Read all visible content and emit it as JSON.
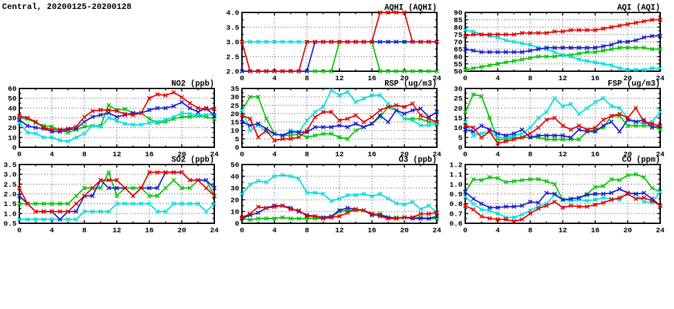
{
  "page_title": "Central, 20200125-20200128",
  "palette": {
    "red": "#e10000",
    "blue": "#1a1acd",
    "green": "#00c400",
    "cyan": "#00dcdc"
  },
  "chart_data": [
    {
      "id": "aqhi",
      "type": "line",
      "title": "AQHI (AQHI)",
      "xlim": [
        0,
        24
      ],
      "xticks": [
        0,
        4,
        8,
        12,
        16,
        20,
        24
      ],
      "x_minor_step": 2,
      "ylim": [
        2.0,
        4.0
      ],
      "ytick_step": 0.5,
      "ydecimals": 1,
      "grid": true,
      "legend": "none",
      "series": [
        {
          "name": "green",
          "color": "green",
          "values": [
            2,
            2,
            2,
            2,
            2,
            2,
            2,
            2,
            2,
            2,
            2,
            2,
            3,
            3,
            3,
            3,
            3,
            2,
            2,
            2,
            2,
            2,
            2,
            2,
            2
          ]
        },
        {
          "name": "cyan",
          "color": "cyan",
          "values": [
            3,
            3,
            3,
            3,
            3,
            3,
            3,
            3,
            3,
            3,
            3,
            3,
            3,
            3,
            3,
            3,
            3,
            3,
            3,
            3,
            3,
            3,
            3,
            3,
            3
          ]
        },
        {
          "name": "blue",
          "color": "blue",
          "values": [
            2,
            2,
            2,
            2,
            2,
            2,
            2,
            2,
            2,
            3,
            3,
            3,
            3,
            3,
            3,
            3,
            3,
            3,
            3,
            3,
            3,
            3,
            3,
            3,
            3
          ]
        },
        {
          "name": "red",
          "color": "red",
          "values": [
            3,
            2,
            2,
            2,
            2,
            2,
            2,
            2,
            3,
            3,
            3,
            3,
            3,
            3,
            3,
            3,
            3,
            4,
            4,
            4,
            4,
            3,
            3,
            3,
            3
          ]
        }
      ]
    },
    {
      "id": "aqi",
      "type": "line",
      "title": "AQI (AQI)",
      "xlim": [
        0,
        24
      ],
      "xticks": [
        0,
        4,
        8,
        12,
        16,
        20,
        24
      ],
      "x_minor_step": 2,
      "ylim": [
        50,
        90
      ],
      "ytick_step": 5,
      "ydecimals": 0,
      "grid": true,
      "legend": "none",
      "series": [
        {
          "name": "green",
          "color": "green",
          "values": [
            51,
            52,
            53,
            54,
            55,
            56,
            57,
            58,
            59,
            60,
            60,
            60,
            61,
            61,
            62,
            63,
            63,
            64,
            65,
            66,
            66,
            66,
            66,
            65,
            65
          ]
        },
        {
          "name": "cyan",
          "color": "cyan",
          "values": [
            78,
            77,
            75,
            74,
            73,
            71,
            70,
            69,
            68,
            66,
            65,
            63,
            61,
            60,
            58,
            57,
            56,
            55,
            54,
            52,
            51,
            51,
            51,
            52,
            52
          ]
        },
        {
          "name": "blue",
          "color": "blue",
          "values": [
            65,
            64,
            63,
            63,
            63,
            63,
            63,
            63,
            64,
            65,
            66,
            66,
            66,
            66,
            66,
            66,
            66,
            67,
            68,
            70,
            70,
            71,
            73,
            74,
            74
          ]
        },
        {
          "name": "red",
          "color": "red",
          "values": [
            74,
            75,
            75,
            75,
            75,
            75,
            75,
            76,
            76,
            76,
            76,
            77,
            77,
            78,
            78,
            78,
            78,
            79,
            80,
            81,
            82,
            83,
            84,
            85,
            85
          ]
        }
      ]
    },
    {
      "id": "no2",
      "type": "line",
      "title": "NO2 (ppb)",
      "xlim": [
        0,
        24
      ],
      "xticks": [
        0,
        4,
        8,
        12,
        16,
        20,
        24
      ],
      "x_minor_step": 2,
      "ylim": [
        0,
        60
      ],
      "ytick_step": 10,
      "ydecimals": 0,
      "grid": true,
      "legend": "none",
      "series": [
        {
          "name": "green",
          "color": "green",
          "values": [
            30,
            29,
            25,
            22,
            21,
            17,
            15,
            18,
            21,
            22,
            22,
            43,
            38,
            39,
            35,
            35,
            29,
            25,
            26,
            29,
            31,
            31,
            32,
            31,
            29
          ]
        },
        {
          "name": "cyan",
          "color": "cyan",
          "values": [
            25,
            15,
            14,
            10,
            10,
            7,
            6,
            10,
            14,
            22,
            21,
            30,
            27,
            24,
            23,
            23,
            25,
            26,
            28,
            31,
            35,
            34,
            33,
            33,
            33
          ]
        },
        {
          "name": "blue",
          "color": "blue",
          "values": [
            28,
            22,
            20,
            19,
            16,
            16,
            18,
            19,
            26,
            31,
            33,
            35,
            31,
            33,
            35,
            35,
            38,
            40,
            40,
            42,
            46,
            40,
            36,
            40,
            32
          ]
        },
        {
          "name": "red",
          "color": "red",
          "values": [
            32,
            30,
            26,
            20,
            18,
            18,
            19,
            21,
            31,
            37,
            38,
            38,
            37,
            34,
            33,
            35,
            50,
            54,
            53,
            56,
            51,
            45,
            40,
            39,
            39
          ]
        }
      ]
    },
    {
      "id": "rsp",
      "type": "line",
      "title": "RSP (ug/m3)",
      "xlim": [
        0,
        24
      ],
      "xticks": [
        0,
        4,
        8,
        12,
        16,
        20,
        24
      ],
      "x_minor_step": 2,
      "ylim": [
        0,
        35
      ],
      "ytick_step": 5,
      "ydecimals": 0,
      "grid": true,
      "legend": "none",
      "series": [
        {
          "name": "green",
          "color": "green",
          "values": [
            22,
            30,
            30,
            17,
            8,
            7,
            7,
            8,
            6,
            7,
            8,
            8,
            6,
            5,
            10,
            12,
            14,
            18,
            24,
            22,
            17,
            17,
            17,
            15,
            15
          ]
        },
        {
          "name": "cyan",
          "color": "cyan",
          "values": [
            22,
            10,
            13,
            9,
            8,
            7,
            10,
            9,
            16,
            21,
            24,
            34,
            31,
            33,
            27,
            29,
            31,
            31,
            26,
            22,
            17,
            16,
            13,
            13,
            14
          ]
        },
        {
          "name": "blue",
          "color": "blue",
          "values": [
            15,
            13,
            14,
            11,
            8,
            7,
            9,
            9,
            9,
            12,
            12,
            12,
            13,
            12,
            14,
            12,
            14,
            19,
            15,
            22,
            20,
            22,
            23,
            18,
            21
          ]
        },
        {
          "name": "red",
          "color": "red",
          "values": [
            19,
            17,
            6,
            10,
            4,
            5,
            5,
            6,
            10,
            18,
            21,
            21,
            16,
            17,
            19,
            15,
            18,
            22,
            24,
            25,
            24,
            26,
            19,
            17,
            15
          ]
        }
      ]
    },
    {
      "id": "fsp",
      "type": "line",
      "title": "FSP (ug/m3)",
      "xlim": [
        0,
        24
      ],
      "xticks": [
        0,
        4,
        8,
        12,
        16,
        20,
        24
      ],
      "x_minor_step": 2,
      "ylim": [
        0,
        30
      ],
      "ytick_step": 5,
      "ydecimals": 0,
      "grid": true,
      "legend": "none",
      "series": [
        {
          "name": "green",
          "color": "green",
          "values": [
            18,
            27,
            26,
            15,
            4,
            4,
            5,
            5,
            5,
            5,
            4,
            4,
            4,
            4,
            4,
            8,
            9,
            10,
            16,
            16,
            11,
            11,
            11,
            11,
            9
          ]
        },
        {
          "name": "cyan",
          "color": "cyan",
          "values": [
            13,
            6,
            7,
            8,
            5,
            5,
            6,
            7,
            10,
            15,
            18,
            25,
            21,
            22,
            17,
            20,
            23,
            25,
            21,
            20,
            15,
            13,
            12,
            13,
            18
          ]
        },
        {
          "name": "blue",
          "color": "blue",
          "values": [
            9,
            8,
            11,
            9,
            7,
            6,
            7,
            9,
            5,
            6,
            6,
            6,
            6,
            5,
            9,
            8,
            8,
            11,
            13,
            8,
            14,
            13,
            14,
            10,
            11
          ]
        },
        {
          "name": "red",
          "color": "red",
          "values": [
            11,
            10,
            5,
            8,
            2,
            3,
            4,
            5,
            7,
            10,
            14,
            15,
            11,
            9,
            11,
            9,
            10,
            14,
            16,
            17,
            15,
            20,
            13,
            12,
            11
          ]
        }
      ]
    },
    {
      "id": "so2",
      "type": "line",
      "title": "SO2 (ppb)",
      "xlim": [
        0,
        24
      ],
      "xticks": [
        0,
        4,
        8,
        12,
        16,
        20,
        24
      ],
      "x_minor_step": 2,
      "ylim": [
        0.5,
        3.5
      ],
      "ytick_step": 0.5,
      "ydecimals": 1,
      "grid": true,
      "legend": "none",
      "series": [
        {
          "name": "green",
          "color": "green",
          "values": [
            1.5,
            1.5,
            1.5,
            1.5,
            1.5,
            1.5,
            1.5,
            1.9,
            2.3,
            2.3,
            2.3,
            3.1,
            1.9,
            2.3,
            2.3,
            2.3,
            1.9,
            1.9,
            2.3,
            2.7,
            2.3,
            2.3,
            2.7,
            2.7,
            1.9
          ]
        },
        {
          "name": "cyan",
          "color": "cyan",
          "values": [
            0.7,
            0.7,
            0.7,
            0.7,
            0.7,
            0.7,
            0.7,
            0.7,
            1.1,
            1.1,
            1.1,
            1.1,
            1.5,
            1.5,
            1.5,
            1.5,
            1.5,
            1.1,
            1.1,
            1.5,
            1.5,
            1.5,
            1.5,
            1.1,
            1.5
          ]
        },
        {
          "name": "blue",
          "color": "blue",
          "values": [
            1.9,
            1.5,
            1.1,
            1.1,
            1.1,
            0.7,
            1.1,
            1.1,
            1.9,
            1.9,
            2.7,
            2.3,
            2.3,
            2.3,
            1.9,
            2.3,
            2.3,
            2.3,
            3.1,
            3.1,
            3.1,
            2.7,
            2.7,
            2.7,
            2.3
          ]
        },
        {
          "name": "red",
          "color": "red",
          "values": [
            2.3,
            1.5,
            1.1,
            1.1,
            1.1,
            1.1,
            1.1,
            1.5,
            1.9,
            2.3,
            2.7,
            2.7,
            2.7,
            2.3,
            1.9,
            2.3,
            3.1,
            3.1,
            3.1,
            3.1,
            3.1,
            2.7,
            2.7,
            2.3,
            1.9
          ]
        }
      ]
    },
    {
      "id": "o3",
      "type": "line",
      "title": "O3 (ppb)",
      "xlim": [
        0,
        24
      ],
      "xticks": [
        0,
        4,
        8,
        12,
        16,
        20,
        24
      ],
      "x_minor_step": 2,
      "ylim": [
        0,
        50
      ],
      "ytick_step": 10,
      "ydecimals": 0,
      "grid": true,
      "legend": "none",
      "series": [
        {
          "name": "green",
          "color": "green",
          "values": [
            4,
            3,
            4,
            4,
            4,
            5,
            4,
            4,
            4,
            4,
            4,
            5,
            10,
            11,
            11,
            11,
            8,
            8,
            5,
            5,
            5,
            5,
            5,
            4,
            4
          ]
        },
        {
          "name": "cyan",
          "color": "cyan",
          "values": [
            25,
            33,
            36,
            35,
            40,
            41,
            40,
            38,
            26,
            26,
            25,
            19,
            21,
            24,
            24,
            25,
            23,
            25,
            21,
            17,
            16,
            18,
            12,
            15,
            9
          ]
        },
        {
          "name": "blue",
          "color": "blue",
          "values": [
            4,
            7,
            9,
            13,
            15,
            15,
            13,
            10,
            7,
            6,
            5,
            6,
            11,
            13,
            12,
            11,
            7,
            7,
            5,
            4,
            5,
            4,
            4,
            4,
            6
          ]
        },
        {
          "name": "red",
          "color": "red",
          "values": [
            5,
            8,
            14,
            13,
            14,
            15,
            12,
            11,
            6,
            6,
            4,
            5,
            6,
            9,
            12,
            11,
            8,
            6,
            4,
            4,
            5,
            5,
            8,
            8,
            9
          ]
        }
      ]
    },
    {
      "id": "co",
      "type": "line",
      "title": "CO (ppm)",
      "xlim": [
        0,
        24
      ],
      "xticks": [
        0,
        4,
        8,
        12,
        16,
        20,
        24
      ],
      "x_minor_step": 2,
      "ylim": [
        0.6,
        1.2
      ],
      "ytick_step": 0.1,
      "ydecimals": 1,
      "grid": true,
      "legend": "none",
      "series": [
        {
          "name": "green",
          "color": "green",
          "values": [
            0.92,
            1.05,
            1.04,
            1.07,
            1.06,
            1.02,
            1.03,
            1.04,
            1.05,
            1.05,
            1.03,
            1.0,
            0.84,
            0.85,
            0.86,
            0.9,
            0.97,
            0.98,
            1.05,
            1.04,
            1.09,
            1.1,
            1.07,
            0.96,
            0.92
          ]
        },
        {
          "name": "cyan",
          "color": "cyan",
          "values": [
            0.87,
            0.8,
            0.74,
            0.73,
            0.7,
            0.66,
            0.66,
            0.69,
            0.73,
            0.77,
            0.8,
            0.89,
            0.84,
            0.83,
            0.84,
            0.83,
            0.84,
            0.86,
            0.85,
            0.84,
            0.91,
            0.9,
            0.82,
            0.81,
            0.92
          ]
        },
        {
          "name": "blue",
          "color": "blue",
          "values": [
            0.92,
            0.85,
            0.8,
            0.76,
            0.76,
            0.77,
            0.77,
            0.78,
            0.82,
            0.81,
            0.91,
            0.9,
            0.84,
            0.85,
            0.86,
            0.89,
            0.9,
            0.9,
            0.91,
            0.95,
            0.91,
            0.9,
            0.91,
            0.85,
            0.78
          ]
        },
        {
          "name": "red",
          "color": "red",
          "values": [
            0.78,
            0.74,
            0.67,
            0.65,
            0.64,
            0.64,
            0.62,
            0.64,
            0.7,
            0.75,
            0.78,
            0.82,
            0.76,
            0.78,
            0.77,
            0.77,
            0.79,
            0.81,
            0.84,
            0.86,
            0.9,
            0.85,
            0.86,
            0.83,
            0.78
          ]
        }
      ]
    }
  ]
}
